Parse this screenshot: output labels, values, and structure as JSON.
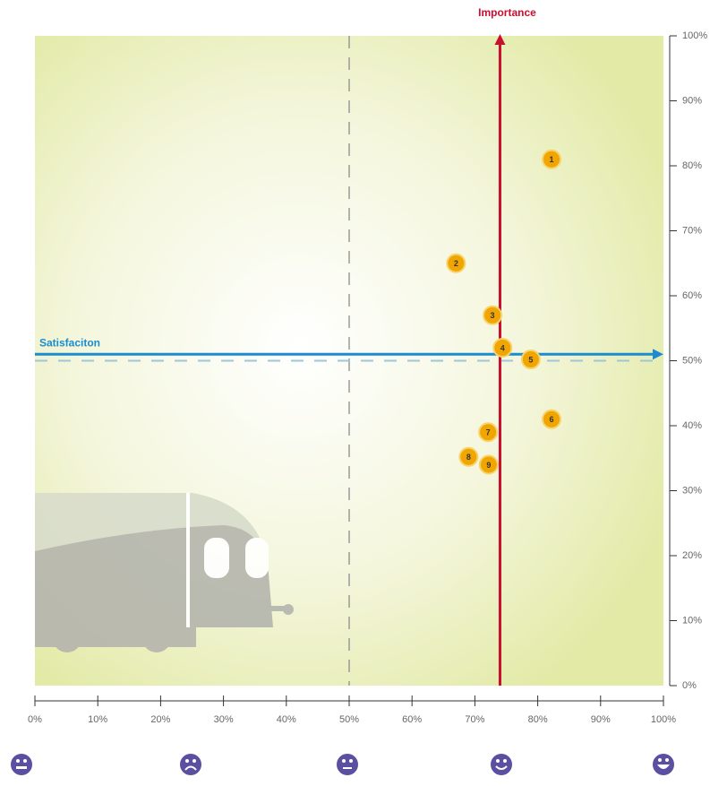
{
  "chart_data": {
    "type": "scatter",
    "x": [
      82.2,
      67,
      72.8,
      74.4,
      78.9,
      82.2,
      72.1,
      69,
      72.2
    ],
    "series": [
      {
        "values": [
          81,
          65,
          57,
          52,
          50.2,
          41,
          39,
          35.2,
          34
        ],
        "labels": [
          "1",
          "2",
          "3",
          "4",
          "5",
          "6",
          "7",
          "8",
          "9"
        ],
        "color": "#f0a500"
      }
    ],
    "xlim": [
      0,
      100
    ],
    "ylim": [
      0,
      100
    ],
    "xticks": [
      {
        "value": 0,
        "label": "0%"
      },
      {
        "value": 10,
        "label": "10%"
      },
      {
        "value": 20,
        "label": "20%"
      },
      {
        "value": 30,
        "label": "30%"
      },
      {
        "value": 40,
        "label": "40%"
      },
      {
        "value": 50,
        "label": "50%"
      },
      {
        "value": 60,
        "label": "60%"
      },
      {
        "value": 70,
        "label": "70%"
      },
      {
        "value": 80,
        "label": "80%"
      },
      {
        "value": 90,
        "label": "90%"
      },
      {
        "value": 100,
        "label": "100%"
      }
    ],
    "yticks": [
      {
        "value": 0,
        "label": "0%"
      },
      {
        "value": 10,
        "label": "10%"
      },
      {
        "value": 20,
        "label": "20%"
      },
      {
        "value": 30,
        "label": "30%"
      },
      {
        "value": 40,
        "label": "40%"
      },
      {
        "value": 50,
        "label": "50%"
      },
      {
        "value": 60,
        "label": "60%"
      },
      {
        "value": 70,
        "label": "70%"
      },
      {
        "value": 80,
        "label": "80%"
      },
      {
        "value": 90,
        "label": "90%"
      },
      {
        "value": 100,
        "label": "100%"
      }
    ],
    "vline": {
      "text": "Importance",
      "value": 74,
      "color": "#c8102e"
    },
    "hline": {
      "text": "Satisfaciton",
      "value": 51,
      "color": "#1a8ccf"
    },
    "midlines": [
      50,
      50
    ]
  }
}
